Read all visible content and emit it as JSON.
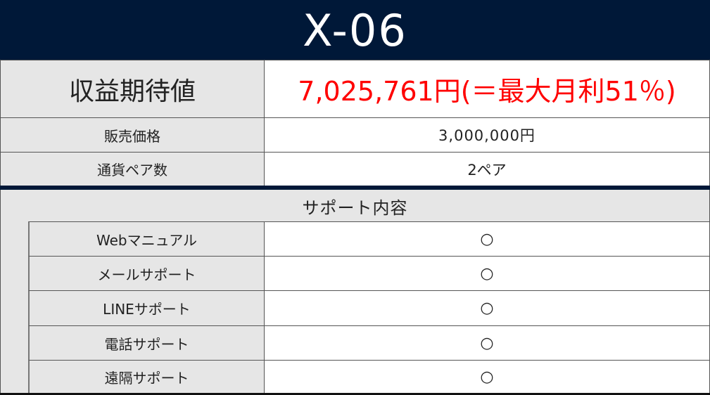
{
  "title": "X-06",
  "rows": [
    {
      "label": "収益期待値",
      "value": "7,025,761円(＝最大月利51％)"
    },
    {
      "label": "販売価格",
      "value": "3,000,000円"
    },
    {
      "label": "通貨ペア数",
      "value": "2ペア"
    }
  ],
  "support": {
    "heading": "サポート内容",
    "items": [
      {
        "label": "Webマニュアル",
        "value": "○"
      },
      {
        "label": "メールサポート",
        "value": "○"
      },
      {
        "label": "LINEサポート",
        "value": "○"
      },
      {
        "label": "電話サポート",
        "value": "○"
      },
      {
        "label": "遠隔サポート",
        "value": "○"
      }
    ]
  },
  "colors": {
    "navy": "#001838",
    "highlight": "#ff0000"
  }
}
